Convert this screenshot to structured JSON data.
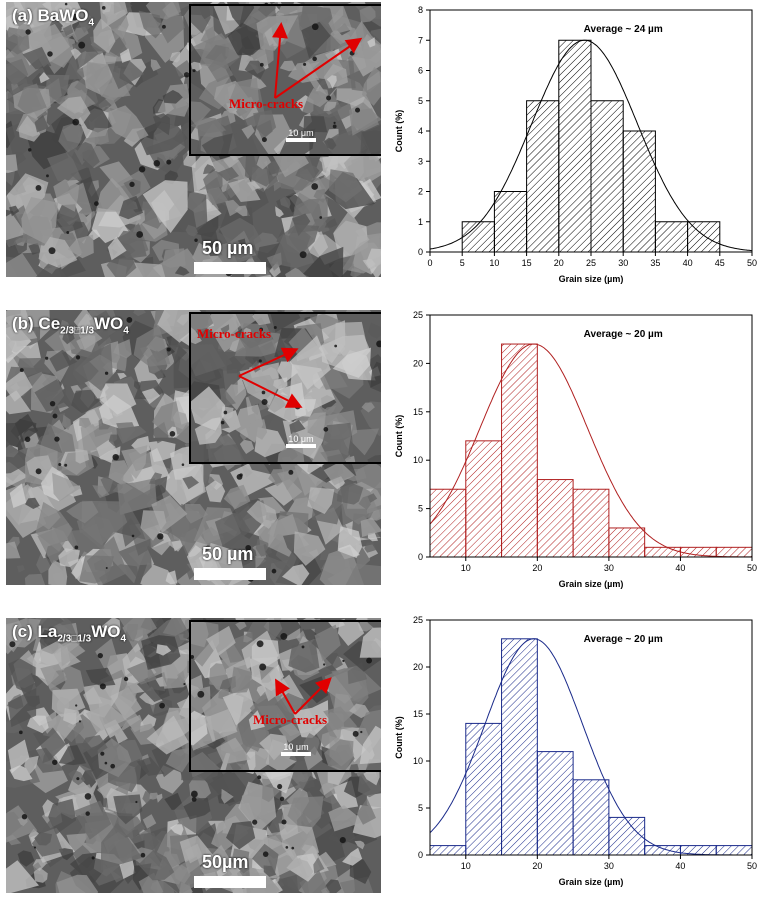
{
  "figure": {
    "panels": [
      {
        "label_prefix": "(a) BaWO",
        "label_sub": "4",
        "label_mid": "",
        "label_sub2": "",
        "crack_label": "Micro-cracks",
        "inset_scale": "10 μm",
        "scale_bar": "50 µm"
      },
      {
        "label_prefix": "(b) Ce",
        "label_sub": "2/3□1/3",
        "label_mid": "WO",
        "label_sub2": "4",
        "crack_label": "Micro-cracks",
        "inset_scale": "10 μm",
        "scale_bar": "50 µm"
      },
      {
        "label_prefix": "(c) La",
        "label_sub": "2/3□1/3",
        "label_mid": "WO",
        "label_sub2": "4",
        "crack_label": "Micro-cracks",
        "inset_scale": "10 μm",
        "scale_bar": "50µm"
      }
    ]
  },
  "chart_data": [
    {
      "type": "bar",
      "annotation": "Average ~ 24 µm",
      "xlabel": "Grain size (µm)",
      "ylabel": "Count (%)",
      "xlim": [
        0,
        50
      ],
      "ylim": [
        0,
        8
      ],
      "xticks": [
        0,
        5,
        10,
        15,
        20,
        25,
        30,
        35,
        40,
        45,
        50
      ],
      "yticks": [
        0,
        1,
        2,
        3,
        4,
        5,
        6,
        7,
        8
      ],
      "bins": [
        [
          5,
          10
        ],
        [
          10,
          15
        ],
        [
          15,
          20
        ],
        [
          20,
          25
        ],
        [
          25,
          30
        ],
        [
          30,
          35
        ],
        [
          35,
          40
        ],
        [
          40,
          45
        ]
      ],
      "values": [
        1,
        2,
        5,
        7,
        5,
        4,
        1,
        1
      ],
      "fit": {
        "type": "gaussian",
        "mean": 24,
        "sigma": 8.2,
        "peak": 7
      },
      "color": "#000000"
    },
    {
      "type": "bar",
      "annotation": "Average ~ 20 µm",
      "xlabel": "Grain size (µm)",
      "ylabel": "Count (%)",
      "xlim": [
        5,
        50
      ],
      "ylim": [
        0,
        25
      ],
      "xticks": [
        10,
        20,
        30,
        40,
        50
      ],
      "yticks": [
        0,
        5,
        10,
        15,
        20,
        25
      ],
      "bins": [
        [
          5,
          10
        ],
        [
          10,
          15
        ],
        [
          15,
          20
        ],
        [
          20,
          25
        ],
        [
          25,
          30
        ],
        [
          30,
          35
        ],
        [
          35,
          40
        ],
        [
          40,
          45
        ],
        [
          45,
          50
        ]
      ],
      "values": [
        7,
        12,
        22,
        8,
        7,
        3,
        1,
        1,
        1
      ],
      "fit": {
        "type": "gaussian",
        "mean": 19.5,
        "sigma": 7.5,
        "peak": 22
      },
      "color": "#b02020"
    },
    {
      "type": "bar",
      "annotation": "Average ~ 20 µm",
      "xlabel": "Grain size (µm)",
      "ylabel": "Count (%)",
      "xlim": [
        5,
        50
      ],
      "ylim": [
        0,
        25
      ],
      "xticks": [
        10,
        20,
        30,
        40,
        50
      ],
      "yticks": [
        0,
        5,
        10,
        15,
        20,
        25
      ],
      "bins": [
        [
          5,
          10
        ],
        [
          10,
          15
        ],
        [
          15,
          20
        ],
        [
          20,
          25
        ],
        [
          25,
          30
        ],
        [
          30,
          35
        ],
        [
          35,
          40
        ],
        [
          40,
          45
        ],
        [
          45,
          50
        ]
      ],
      "values": [
        1,
        14,
        23,
        11,
        8,
        4,
        1,
        1,
        1
      ],
      "fit": {
        "type": "gaussian",
        "mean": 19.5,
        "sigma": 6.8,
        "peak": 23
      },
      "color": "#1a2a8a"
    }
  ]
}
